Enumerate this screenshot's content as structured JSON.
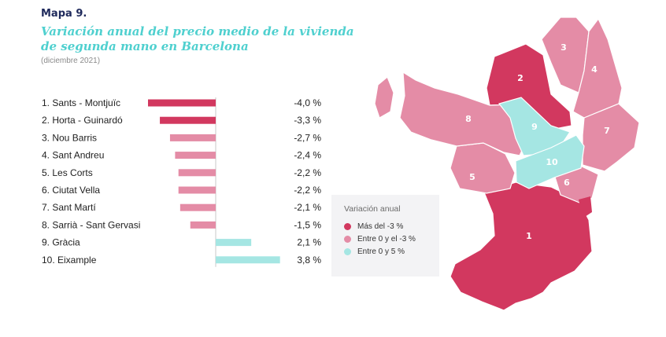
{
  "header": {
    "map_number": "Mapa 9.",
    "title_line1": "Variación anual del precio medio de la vivienda",
    "title_line2": "de segunda mano en Barcelona",
    "subtitle": "(diciembre 2021)"
  },
  "colors": {
    "dark_pink": "#d2385f",
    "light_pink": "#e48ca6",
    "cyan": "#a5e6e3"
  },
  "legend": {
    "title": "Variación anual",
    "items": [
      {
        "label": "Más del -3 %",
        "color": "#d2385f"
      },
      {
        "label": "Entre 0 y el -3 %",
        "color": "#e48ca6"
      },
      {
        "label": "Entre 0 y 5 %",
        "color": "#a5e6e3"
      }
    ]
  },
  "chart_data": {
    "type": "bar",
    "orientation": "horizontal",
    "unit": "%",
    "categories": [
      "1. Sants - Montjuïc",
      "2. Horta - Guinardó",
      "3. Nou Barris",
      "4. Sant Andreu",
      "5. Les Corts",
      "6. Ciutat Vella",
      "7. Sant Martí",
      "8. Sarrià - Sant Gervasi",
      "9. Gràcia",
      "10. Eixample"
    ],
    "values": [
      -4.0,
      -3.3,
      -2.7,
      -2.4,
      -2.2,
      -2.2,
      -2.1,
      -1.5,
      2.1,
      3.8
    ],
    "value_labels": [
      "-4,0 %",
      "-3,3 %",
      "-2,7 %",
      "-2,4 %",
      "-2,2 %",
      "-2,2 %",
      "-2,1 %",
      "-1,5 %",
      "2,1 %",
      "3,8 %"
    ],
    "xlim": [
      -4.0,
      3.8
    ]
  },
  "map": {
    "districts": [
      {
        "number": "1",
        "name": "Sants - Montjuïc",
        "value": -4.0
      },
      {
        "number": "2",
        "name": "Horta - Guinardó",
        "value": -3.3
      },
      {
        "number": "3",
        "name": "Nou Barris",
        "value": -2.7
      },
      {
        "number": "4",
        "name": "Sant Andreu",
        "value": -2.4
      },
      {
        "number": "5",
        "name": "Les Corts",
        "value": -2.2
      },
      {
        "number": "6",
        "name": "Ciutat Vella",
        "value": -2.2
      },
      {
        "number": "7",
        "name": "Sant Martí",
        "value": -2.1
      },
      {
        "number": "8",
        "name": "Sarrià - Sant Gervasi",
        "value": -1.5
      },
      {
        "number": "9",
        "name": "Gràcia",
        "value": 2.1
      },
      {
        "number": "10",
        "name": "Eixample",
        "value": 3.8
      }
    ]
  }
}
